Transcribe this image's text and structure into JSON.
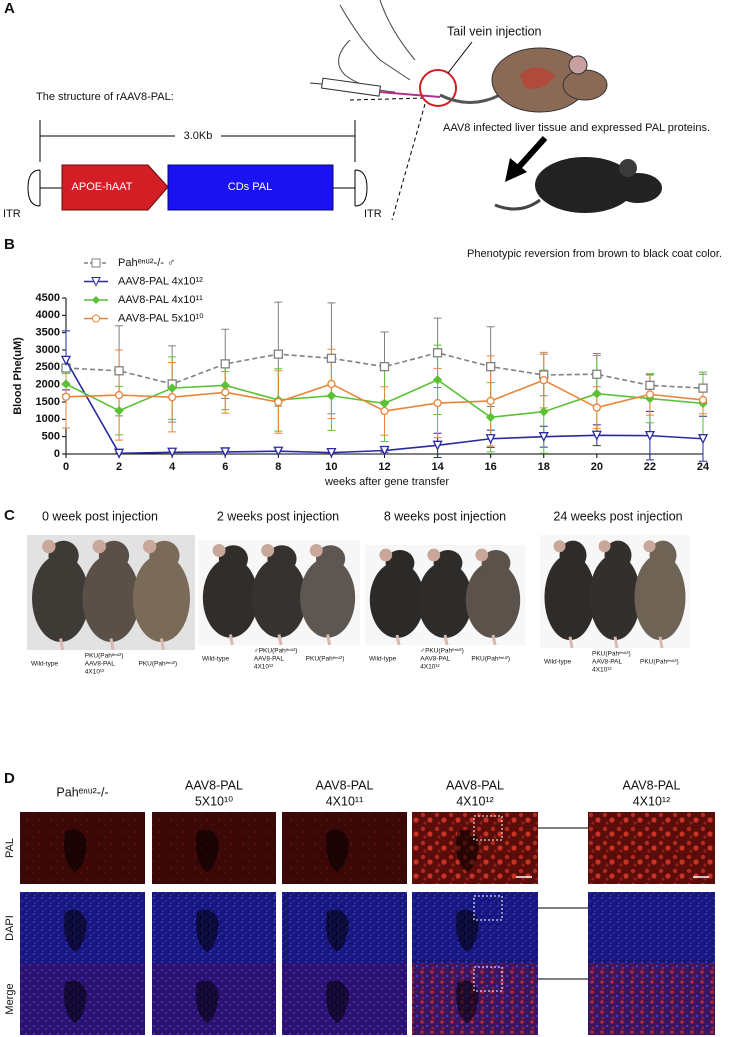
{
  "panel_a": {
    "letter": "A",
    "structure_title": "The structure of rAAV8-PAL:",
    "length": "3.0Kb",
    "itr_left": "ITR",
    "promoter": "APOE-hAAT",
    "coding": "CDs PAL",
    "itr_right": "ITR",
    "injection": "Tail vein injection",
    "liver": "AAV8 infected liver tissue and expressed PAL proteins.",
    "reversion": "Phenotypic reversion from brown to black coat color."
  },
  "chart_data": {
    "type": "line",
    "letter": "B",
    "x_label": "weeks after gene transfer",
    "y_label": "Blood Phe(uM)",
    "x": [
      0,
      2,
      4,
      6,
      8,
      10,
      12,
      14,
      16,
      18,
      20,
      22,
      24
    ],
    "xlim": [
      0,
      24
    ],
    "xticks": [
      0,
      2,
      4,
      6,
      8,
      10,
      12,
      14,
      16,
      18,
      20,
      22,
      24
    ],
    "ylim": [
      0,
      4500
    ],
    "yticks": [
      0,
      500,
      1000,
      1500,
      2000,
      2500,
      3000,
      3500,
      4000,
      4500
    ],
    "series": [
      {
        "name": "Pahᵉⁿᵘ²-/- ♂",
        "color": "#808080",
        "marker": "square",
        "dashed": true,
        "values": [
          2480,
          2400,
          2020,
          2600,
          2880,
          2760,
          2520,
          2920,
          2520,
          2280,
          2300,
          1980,
          1900
        ],
        "errors": [
          0,
          1300,
          1100,
          1000,
          1500,
          1600,
          1000,
          1000,
          1150,
          600,
          600,
          300,
          400
        ]
      },
      {
        "name": "AAV8-PAL 4x10¹²",
        "color": "#2a2aa0",
        "marker": "triangle-down",
        "dashed": false,
        "values": [
          2700,
          20,
          50,
          60,
          80,
          40,
          100,
          250,
          440,
          500,
          540,
          530,
          440
        ],
        "errors": [
          850,
          0,
          0,
          0,
          0,
          0,
          50,
          350,
          250,
          300,
          300,
          700,
          650
        ]
      },
      {
        "name": "AAV8-PAL 4x10¹¹",
        "color": "#5ac234",
        "marker": "diamond",
        "dashed": false,
        "values": [
          2020,
          1250,
          1900,
          1980,
          1560,
          1680,
          1460,
          2140,
          1060,
          1220,
          1740,
          1600,
          1460
        ],
        "errors": [
          300,
          700,
          900,
          700,
          900,
          1000,
          1100,
          1000,
          1000,
          1200,
          1100,
          700,
          900
        ]
      },
      {
        "name": "AAV8-PAL 5x10¹⁰",
        "color": "#e8853a",
        "marker": "circle",
        "dashed": false,
        "values": [
          1650,
          1700,
          1640,
          1780,
          1500,
          2020,
          1240,
          1470,
          1530,
          2130,
          1340,
          1720,
          1560
        ],
        "errors": [
          900,
          1300,
          1000,
          600,
          900,
          1000,
          700,
          1000,
          1300,
          800,
          600,
          600,
          400
        ]
      }
    ]
  },
  "panel_c": {
    "letter": "C",
    "groups": [
      {
        "title": "0 week post injection",
        "labels": [
          [
            "Wild-type"
          ],
          [
            "PKU(Pahᵉⁿᵘ²)",
            "AAV8-PAL",
            "4X10¹²"
          ],
          [
            "PKU(Pahᵉⁿᵘ²)"
          ]
        ]
      },
      {
        "title": "2 weeks post injection",
        "labels": [
          [
            "Wild-type"
          ],
          [
            "♂PKU(Pahᵉⁿᵘ²)",
            "AAV8-PAL",
            "4X10¹²"
          ],
          [
            "PKU(Pahᵉⁿᵘ²)"
          ]
        ]
      },
      {
        "title": "8 weeks post injection",
        "labels": [
          [
            "Wild-type"
          ],
          [
            "♂PKU(Pahᵉⁿᵘ²)",
            "AAV8-PAL",
            "4X10¹²"
          ],
          [
            "PKU(Pahᵉⁿᵘ²)"
          ]
        ]
      },
      {
        "title": "24 weeks post injection",
        "labels": [
          [
            "Wild-type"
          ],
          [
            "PKU(Pahᵉⁿᵘ²)",
            "AAV8-PAL",
            "4X10¹²"
          ],
          [
            "PKU(Pahᵉⁿᵘ²)"
          ]
        ]
      }
    ]
  },
  "panel_d": {
    "letter": "D",
    "columns": [
      [
        "Pahᵉⁿᵘ²-/-"
      ],
      [
        "AAV8-PAL",
        "5X10¹⁰"
      ],
      [
        "AAV8-PAL",
        "4X10¹¹"
      ],
      [
        "AAV8-PAL",
        "4X10¹²"
      ],
      [
        "AAV8-PAL",
        "4X10¹²"
      ]
    ],
    "rows": [
      "PAL",
      "DAPI",
      "Merge"
    ]
  }
}
